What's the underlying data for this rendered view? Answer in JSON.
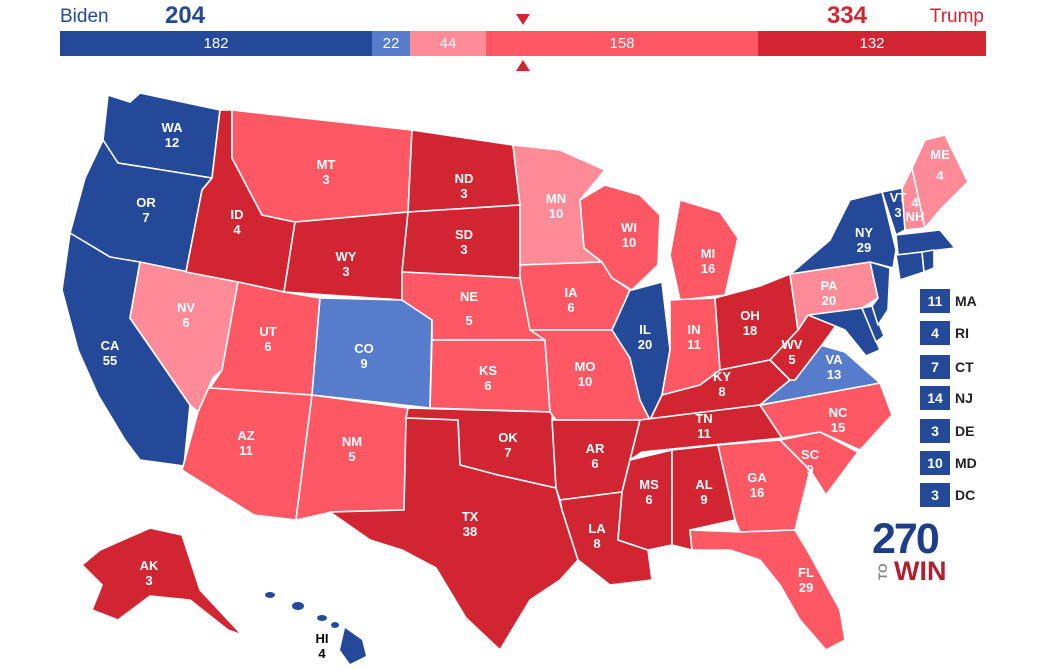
{
  "header": {
    "biden_name": "Biden",
    "biden_total": "204",
    "trump_name": "Trump",
    "trump_total": "334"
  },
  "bar": [
    {
      "value": "182",
      "color": "#244999"
    },
    {
      "value": "22",
      "color": "#577ccc"
    },
    {
      "value": "44",
      "color": "#ff8b98"
    },
    {
      "value": "158",
      "color": "#ff5865"
    },
    {
      "value": "132",
      "color": "#d22532"
    }
  ],
  "legend_colors": {
    "safe_dem": "#244999",
    "lean_dem": "#577ccc",
    "tilt_rep": "#ff8b98",
    "lean_rep": "#ff5865",
    "safe_rep": "#d22532"
  },
  "states": {
    "WA": {
      "abbr": "WA",
      "ev": "12"
    },
    "OR": {
      "abbr": "OR",
      "ev": "7"
    },
    "CA": {
      "abbr": "CA",
      "ev": "55"
    },
    "NV": {
      "abbr": "NV",
      "ev": "6"
    },
    "ID": {
      "abbr": "ID",
      "ev": "4"
    },
    "MT": {
      "abbr": "MT",
      "ev": "3"
    },
    "WY": {
      "abbr": "WY",
      "ev": "3"
    },
    "UT": {
      "abbr": "UT",
      "ev": "6"
    },
    "AZ": {
      "abbr": "AZ",
      "ev": "11"
    },
    "CO": {
      "abbr": "CO",
      "ev": "9"
    },
    "NM": {
      "abbr": "NM",
      "ev": "5"
    },
    "ND": {
      "abbr": "ND",
      "ev": "3"
    },
    "SD": {
      "abbr": "SD",
      "ev": "3"
    },
    "NE": {
      "abbr": "NE",
      "ev": "5"
    },
    "KS": {
      "abbr": "KS",
      "ev": "6"
    },
    "OK": {
      "abbr": "OK",
      "ev": "7"
    },
    "TX": {
      "abbr": "TX",
      "ev": "38"
    },
    "MN": {
      "abbr": "MN",
      "ev": "10"
    },
    "IA": {
      "abbr": "IA",
      "ev": "6"
    },
    "MO": {
      "abbr": "MO",
      "ev": "10"
    },
    "AR": {
      "abbr": "AR",
      "ev": "6"
    },
    "LA": {
      "abbr": "LA",
      "ev": "8"
    },
    "WI": {
      "abbr": "WI",
      "ev": "10"
    },
    "IL": {
      "abbr": "IL",
      "ev": "20"
    },
    "MI": {
      "abbr": "MI",
      "ev": "16"
    },
    "IN": {
      "abbr": "IN",
      "ev": "11"
    },
    "OH": {
      "abbr": "OH",
      "ev": "18"
    },
    "KY": {
      "abbr": "KY",
      "ev": "8"
    },
    "TN": {
      "abbr": "TN",
      "ev": "11"
    },
    "MS": {
      "abbr": "MS",
      "ev": "6"
    },
    "AL": {
      "abbr": "AL",
      "ev": "9"
    },
    "GA": {
      "abbr": "GA",
      "ev": "16"
    },
    "FL": {
      "abbr": "FL",
      "ev": "29"
    },
    "SC": {
      "abbr": "SC",
      "ev": "9"
    },
    "NC": {
      "abbr": "NC",
      "ev": "15"
    },
    "VA": {
      "abbr": "VA",
      "ev": "13"
    },
    "WV": {
      "abbr": "WV",
      "ev": "5"
    },
    "PA": {
      "abbr": "PA",
      "ev": "20"
    },
    "NY": {
      "abbr": "NY",
      "ev": "29"
    },
    "VT": {
      "abbr": "VT",
      "ev": "3"
    },
    "NH": {
      "abbr": "NH",
      "ev": "4"
    },
    "ME": {
      "abbr": "ME",
      "ev": "4"
    },
    "AK": {
      "abbr": "AK",
      "ev": "3"
    },
    "HI": {
      "abbr": "HI",
      "ev": "4"
    }
  },
  "northeast_boxes": [
    {
      "ev": "11",
      "abbr": "MA"
    },
    {
      "ev": "4",
      "abbr": "RI"
    },
    {
      "ev": "7",
      "abbr": "CT"
    },
    {
      "ev": "14",
      "abbr": "NJ"
    },
    {
      "ev": "3",
      "abbr": "DE"
    },
    {
      "ev": "10",
      "abbr": "MD"
    },
    {
      "ev": "3",
      "abbr": "DC"
    }
  ],
  "logo": {
    "number": "270",
    "to": "TO",
    "win": "WIN"
  }
}
